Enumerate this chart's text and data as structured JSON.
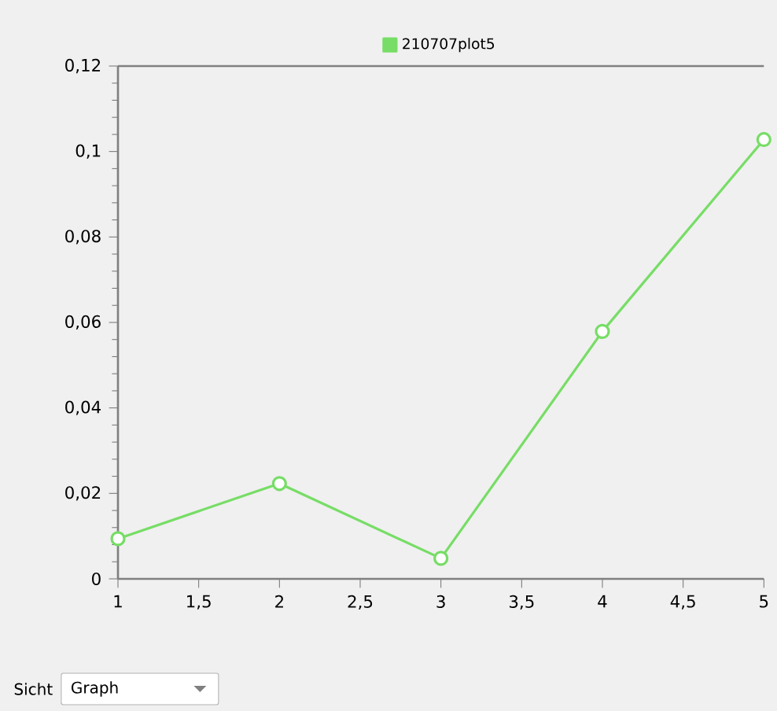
{
  "chart_data": {
    "type": "line",
    "x": [
      1,
      2,
      3,
      4,
      5
    ],
    "series": [
      {
        "name": "210707plot5",
        "color": "#77dd66",
        "values": [
          0.0094,
          0.0223,
          0.0048,
          0.0579,
          0.1028
        ]
      }
    ],
    "xlim": [
      1,
      5
    ],
    "xticks": [
      1,
      {
        "value": 1.5,
        "label": "1,5"
      },
      2,
      {
        "value": 2.5,
        "label": "2,5"
      },
      3,
      {
        "value": 3.5,
        "label": "3,5"
      },
      4,
      {
        "value": 4.5,
        "label": "4,5"
      },
      5
    ],
    "ylim": [
      0,
      0.12
    ],
    "yticks": [
      0,
      {
        "value": 0.02,
        "label": "0,02"
      },
      {
        "value": 0.04,
        "label": "0,04"
      },
      {
        "value": 0.06,
        "label": "0,06"
      },
      {
        "value": 0.08,
        "label": "0,08"
      },
      {
        "value": 0.1,
        "label": "0,1"
      },
      {
        "value": 0.12,
        "label": "0,12"
      }
    ],
    "marker": "circle",
    "line_style": "solid",
    "legend": "top",
    "grid": false,
    "annotations": [
      "Sicht",
      "Graph"
    ]
  }
}
